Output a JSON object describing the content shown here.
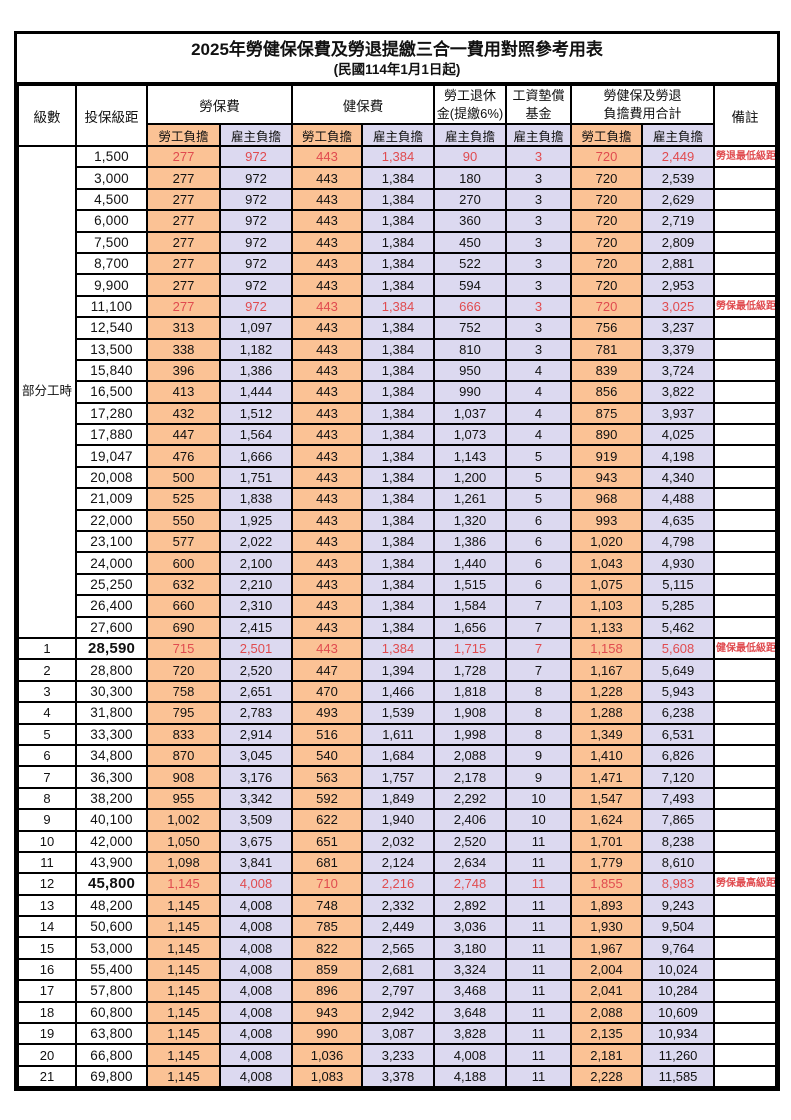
{
  "title": "2025年勞健保保費及勞退提繳三合一費用對照參考用表",
  "subtitle": "(民國114年1月1日起)",
  "colors": {
    "employee_bg": "#fbc295",
    "employer_bg": "#dcd9f0",
    "highlight_red": "#e04b4f",
    "border": "#000000"
  },
  "header": {
    "level": "級數",
    "bracket": "投保級距",
    "labor_insurance": "勞保費",
    "health_insurance": "健保費",
    "pension_line1": "勞工退休",
    "pension_line2": "金(提繳6%)",
    "wage_fund_line1": "工資墊償",
    "wage_fund_line2": "基金",
    "total_line1": "勞健保及勞退",
    "total_line2": "負擔費用合計",
    "remark": "備註",
    "employee": "勞工負擔",
    "employer": "雇主負擔"
  },
  "part_time_label": "部分工時",
  "part_time_rowspan": 23,
  "rows": [
    {
      "level": "",
      "bracket": "1,500",
      "values": [
        "277",
        "972",
        "443",
        "1,384",
        "90",
        "3",
        "720",
        "2,449"
      ],
      "remark": "勞退最低級距",
      "highlight": true,
      "bold_bracket": false
    },
    {
      "level": "",
      "bracket": "3,000",
      "values": [
        "277",
        "972",
        "443",
        "1,384",
        "180",
        "3",
        "720",
        "2,539"
      ],
      "remark": "",
      "highlight": false,
      "bold_bracket": false
    },
    {
      "level": "",
      "bracket": "4,500",
      "values": [
        "277",
        "972",
        "443",
        "1,384",
        "270",
        "3",
        "720",
        "2,629"
      ],
      "remark": "",
      "highlight": false,
      "bold_bracket": false
    },
    {
      "level": "",
      "bracket": "6,000",
      "values": [
        "277",
        "972",
        "443",
        "1,384",
        "360",
        "3",
        "720",
        "2,719"
      ],
      "remark": "",
      "highlight": false,
      "bold_bracket": false
    },
    {
      "level": "",
      "bracket": "7,500",
      "values": [
        "277",
        "972",
        "443",
        "1,384",
        "450",
        "3",
        "720",
        "2,809"
      ],
      "remark": "",
      "highlight": false,
      "bold_bracket": false
    },
    {
      "level": "",
      "bracket": "8,700",
      "values": [
        "277",
        "972",
        "443",
        "1,384",
        "522",
        "3",
        "720",
        "2,881"
      ],
      "remark": "",
      "highlight": false,
      "bold_bracket": false
    },
    {
      "level": "",
      "bracket": "9,900",
      "values": [
        "277",
        "972",
        "443",
        "1,384",
        "594",
        "3",
        "720",
        "2,953"
      ],
      "remark": "",
      "highlight": false,
      "bold_bracket": false
    },
    {
      "level": "",
      "bracket": "11,100",
      "values": [
        "277",
        "972",
        "443",
        "1,384",
        "666",
        "3",
        "720",
        "3,025"
      ],
      "remark": "勞保最低級距",
      "highlight": true,
      "bold_bracket": false
    },
    {
      "level": "",
      "bracket": "12,540",
      "values": [
        "313",
        "1,097",
        "443",
        "1,384",
        "752",
        "3",
        "756",
        "3,237"
      ],
      "remark": "",
      "highlight": false,
      "bold_bracket": false
    },
    {
      "level": "",
      "bracket": "13,500",
      "values": [
        "338",
        "1,182",
        "443",
        "1,384",
        "810",
        "3",
        "781",
        "3,379"
      ],
      "remark": "",
      "highlight": false,
      "bold_bracket": false
    },
    {
      "level": "",
      "bracket": "15,840",
      "values": [
        "396",
        "1,386",
        "443",
        "1,384",
        "950",
        "4",
        "839",
        "3,724"
      ],
      "remark": "",
      "highlight": false,
      "bold_bracket": false
    },
    {
      "level": "",
      "bracket": "16,500",
      "values": [
        "413",
        "1,444",
        "443",
        "1,384",
        "990",
        "4",
        "856",
        "3,822"
      ],
      "remark": "",
      "highlight": false,
      "bold_bracket": false
    },
    {
      "level": "",
      "bracket": "17,280",
      "values": [
        "432",
        "1,512",
        "443",
        "1,384",
        "1,037",
        "4",
        "875",
        "3,937"
      ],
      "remark": "",
      "highlight": false,
      "bold_bracket": false
    },
    {
      "level": "",
      "bracket": "17,880",
      "values": [
        "447",
        "1,564",
        "443",
        "1,384",
        "1,073",
        "4",
        "890",
        "4,025"
      ],
      "remark": "",
      "highlight": false,
      "bold_bracket": false
    },
    {
      "level": "",
      "bracket": "19,047",
      "values": [
        "476",
        "1,666",
        "443",
        "1,384",
        "1,143",
        "5",
        "919",
        "4,198"
      ],
      "remark": "",
      "highlight": false,
      "bold_bracket": false
    },
    {
      "level": "",
      "bracket": "20,008",
      "values": [
        "500",
        "1,751",
        "443",
        "1,384",
        "1,200",
        "5",
        "943",
        "4,340"
      ],
      "remark": "",
      "highlight": false,
      "bold_bracket": false
    },
    {
      "level": "",
      "bracket": "21,009",
      "values": [
        "525",
        "1,838",
        "443",
        "1,384",
        "1,261",
        "5",
        "968",
        "4,488"
      ],
      "remark": "",
      "highlight": false,
      "bold_bracket": false
    },
    {
      "level": "",
      "bracket": "22,000",
      "values": [
        "550",
        "1,925",
        "443",
        "1,384",
        "1,320",
        "6",
        "993",
        "4,635"
      ],
      "remark": "",
      "highlight": false,
      "bold_bracket": false
    },
    {
      "level": "",
      "bracket": "23,100",
      "values": [
        "577",
        "2,022",
        "443",
        "1,384",
        "1,386",
        "6",
        "1,020",
        "4,798"
      ],
      "remark": "",
      "highlight": false,
      "bold_bracket": false
    },
    {
      "level": "",
      "bracket": "24,000",
      "values": [
        "600",
        "2,100",
        "443",
        "1,384",
        "1,440",
        "6",
        "1,043",
        "4,930"
      ],
      "remark": "",
      "highlight": false,
      "bold_bracket": false
    },
    {
      "level": "",
      "bracket": "25,250",
      "values": [
        "632",
        "2,210",
        "443",
        "1,384",
        "1,515",
        "6",
        "1,075",
        "5,115"
      ],
      "remark": "",
      "highlight": false,
      "bold_bracket": false
    },
    {
      "level": "",
      "bracket": "26,400",
      "values": [
        "660",
        "2,310",
        "443",
        "1,384",
        "1,584",
        "7",
        "1,103",
        "5,285"
      ],
      "remark": "",
      "highlight": false,
      "bold_bracket": false
    },
    {
      "level": "",
      "bracket": "27,600",
      "values": [
        "690",
        "2,415",
        "443",
        "1,384",
        "1,656",
        "7",
        "1,133",
        "5,462"
      ],
      "remark": "",
      "highlight": false,
      "bold_bracket": false
    },
    {
      "level": "1",
      "bracket": "28,590",
      "values": [
        "715",
        "2,501",
        "443",
        "1,384",
        "1,715",
        "7",
        "1,158",
        "5,608"
      ],
      "remark": "健保最低級距",
      "highlight": true,
      "bold_bracket": true
    },
    {
      "level": "2",
      "bracket": "28,800",
      "values": [
        "720",
        "2,520",
        "447",
        "1,394",
        "1,728",
        "7",
        "1,167",
        "5,649"
      ],
      "remark": "",
      "highlight": false,
      "bold_bracket": false
    },
    {
      "level": "3",
      "bracket": "30,300",
      "values": [
        "758",
        "2,651",
        "470",
        "1,466",
        "1,818",
        "8",
        "1,228",
        "5,943"
      ],
      "remark": "",
      "highlight": false,
      "bold_bracket": false
    },
    {
      "level": "4",
      "bracket": "31,800",
      "values": [
        "795",
        "2,783",
        "493",
        "1,539",
        "1,908",
        "8",
        "1,288",
        "6,238"
      ],
      "remark": "",
      "highlight": false,
      "bold_bracket": false
    },
    {
      "level": "5",
      "bracket": "33,300",
      "values": [
        "833",
        "2,914",
        "516",
        "1,611",
        "1,998",
        "8",
        "1,349",
        "6,531"
      ],
      "remark": "",
      "highlight": false,
      "bold_bracket": false
    },
    {
      "level": "6",
      "bracket": "34,800",
      "values": [
        "870",
        "3,045",
        "540",
        "1,684",
        "2,088",
        "9",
        "1,410",
        "6,826"
      ],
      "remark": "",
      "highlight": false,
      "bold_bracket": false
    },
    {
      "level": "7",
      "bracket": "36,300",
      "values": [
        "908",
        "3,176",
        "563",
        "1,757",
        "2,178",
        "9",
        "1,471",
        "7,120"
      ],
      "remark": "",
      "highlight": false,
      "bold_bracket": false
    },
    {
      "level": "8",
      "bracket": "38,200",
      "values": [
        "955",
        "3,342",
        "592",
        "1,849",
        "2,292",
        "10",
        "1,547",
        "7,493"
      ],
      "remark": "",
      "highlight": false,
      "bold_bracket": false
    },
    {
      "level": "9",
      "bracket": "40,100",
      "values": [
        "1,002",
        "3,509",
        "622",
        "1,940",
        "2,406",
        "10",
        "1,624",
        "7,865"
      ],
      "remark": "",
      "highlight": false,
      "bold_bracket": false
    },
    {
      "level": "10",
      "bracket": "42,000",
      "values": [
        "1,050",
        "3,675",
        "651",
        "2,032",
        "2,520",
        "11",
        "1,701",
        "8,238"
      ],
      "remark": "",
      "highlight": false,
      "bold_bracket": false
    },
    {
      "level": "11",
      "bracket": "43,900",
      "values": [
        "1,098",
        "3,841",
        "681",
        "2,124",
        "2,634",
        "11",
        "1,779",
        "8,610"
      ],
      "remark": "",
      "highlight": false,
      "bold_bracket": false
    },
    {
      "level": "12",
      "bracket": "45,800",
      "values": [
        "1,145",
        "4,008",
        "710",
        "2,216",
        "2,748",
        "11",
        "1,855",
        "8,983"
      ],
      "remark": "勞保最高級距",
      "highlight": true,
      "bold_bracket": true
    },
    {
      "level": "13",
      "bracket": "48,200",
      "values": [
        "1,145",
        "4,008",
        "748",
        "2,332",
        "2,892",
        "11",
        "1,893",
        "9,243"
      ],
      "remark": "",
      "highlight": false,
      "bold_bracket": false
    },
    {
      "level": "14",
      "bracket": "50,600",
      "values": [
        "1,145",
        "4,008",
        "785",
        "2,449",
        "3,036",
        "11",
        "1,930",
        "9,504"
      ],
      "remark": "",
      "highlight": false,
      "bold_bracket": false
    },
    {
      "level": "15",
      "bracket": "53,000",
      "values": [
        "1,145",
        "4,008",
        "822",
        "2,565",
        "3,180",
        "11",
        "1,967",
        "9,764"
      ],
      "remark": "",
      "highlight": false,
      "bold_bracket": false
    },
    {
      "level": "16",
      "bracket": "55,400",
      "values": [
        "1,145",
        "4,008",
        "859",
        "2,681",
        "3,324",
        "11",
        "2,004",
        "10,024"
      ],
      "remark": "",
      "highlight": false,
      "bold_bracket": false
    },
    {
      "level": "17",
      "bracket": "57,800",
      "values": [
        "1,145",
        "4,008",
        "896",
        "2,797",
        "3,468",
        "11",
        "2,041",
        "10,284"
      ],
      "remark": "",
      "highlight": false,
      "bold_bracket": false
    },
    {
      "level": "18",
      "bracket": "60,800",
      "values": [
        "1,145",
        "4,008",
        "943",
        "2,942",
        "3,648",
        "11",
        "2,088",
        "10,609"
      ],
      "remark": "",
      "highlight": false,
      "bold_bracket": false
    },
    {
      "level": "19",
      "bracket": "63,800",
      "values": [
        "1,145",
        "4,008",
        "990",
        "3,087",
        "3,828",
        "11",
        "2,135",
        "10,934"
      ],
      "remark": "",
      "highlight": false,
      "bold_bracket": false
    },
    {
      "level": "20",
      "bracket": "66,800",
      "values": [
        "1,145",
        "4,008",
        "1,036",
        "3,233",
        "4,008",
        "11",
        "2,181",
        "11,260"
      ],
      "remark": "",
      "highlight": false,
      "bold_bracket": false
    },
    {
      "level": "21",
      "bracket": "69,800",
      "values": [
        "1,145",
        "4,008",
        "1,083",
        "3,378",
        "4,188",
        "11",
        "2,228",
        "11,585"
      ],
      "remark": "",
      "highlight": false,
      "bold_bracket": false
    }
  ]
}
